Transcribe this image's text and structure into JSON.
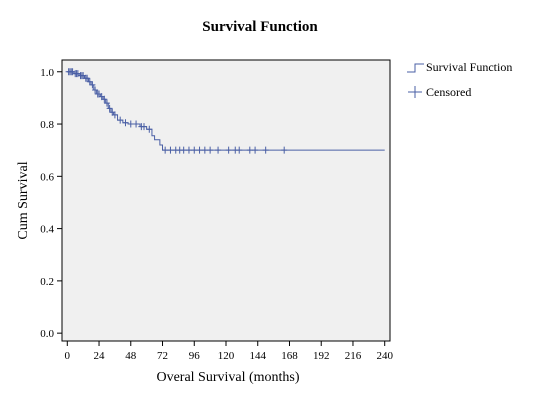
{
  "chart_data": {
    "type": "line",
    "title": "Survival Function",
    "xlabel": "Overal Survival (months)",
    "ylabel": "Cum Survival",
    "xlim": [
      -4,
      244
    ],
    "ylim": [
      -0.03,
      1.045
    ],
    "x_ticks": [
      0,
      24,
      48,
      72,
      96,
      120,
      144,
      168,
      192,
      216,
      240
    ],
    "y_ticks": [
      0.0,
      0.2,
      0.4,
      0.6,
      0.8,
      1.0
    ],
    "y_tick_labels": [
      "0.0",
      "0.2",
      "0.4",
      "0.6",
      "0.8",
      "1.0"
    ],
    "grid": false,
    "legend_position": "right-top",
    "colors": {
      "line": "#4a5fa5",
      "plot_bg": "#f0f0f0",
      "frame": "#000000"
    },
    "series": [
      {
        "name": "Survival Function",
        "x": [
          0,
          5,
          9,
          13,
          16,
          18,
          20,
          22,
          25,
          27,
          29,
          31,
          33,
          35,
          38,
          42,
          46,
          50,
          55,
          60,
          64,
          66,
          70,
          72,
          240
        ],
        "y": [
          1.0,
          0.993,
          0.985,
          0.975,
          0.962,
          0.95,
          0.93,
          0.915,
          0.905,
          0.895,
          0.88,
          0.86,
          0.845,
          0.835,
          0.815,
          0.805,
          0.8,
          0.8,
          0.79,
          0.78,
          0.755,
          0.74,
          0.72,
          0.7,
          0.7
        ]
      }
    ],
    "censored": {
      "name": "Censored",
      "x": [
        1,
        2,
        3,
        4,
        6,
        7,
        8,
        10,
        11,
        12,
        14,
        15,
        17,
        19,
        21,
        23,
        24,
        26,
        28,
        30,
        32,
        34,
        36,
        40,
        44,
        48,
        52,
        56,
        58,
        62,
        74,
        78,
        82,
        85,
        88,
        92,
        96,
        100,
        104,
        108,
        114,
        122,
        127,
        130,
        138,
        142,
        150,
        164
      ],
      "y": [
        1.0,
        1.0,
        1.0,
        1.0,
        0.993,
        0.993,
        0.993,
        0.985,
        0.985,
        0.985,
        0.975,
        0.975,
        0.962,
        0.95,
        0.93,
        0.915,
        0.915,
        0.905,
        0.895,
        0.88,
        0.86,
        0.845,
        0.835,
        0.815,
        0.805,
        0.8,
        0.8,
        0.79,
        0.79,
        0.78,
        0.7,
        0.7,
        0.7,
        0.7,
        0.7,
        0.7,
        0.7,
        0.7,
        0.7,
        0.7,
        0.7,
        0.7,
        0.7,
        0.7,
        0.7,
        0.7,
        0.7,
        0.7
      ]
    },
    "legend": [
      {
        "label": "Survival Function",
        "icon": "step-line-icon"
      },
      {
        "label": "Censored",
        "icon": "plus-marker-icon"
      }
    ]
  }
}
